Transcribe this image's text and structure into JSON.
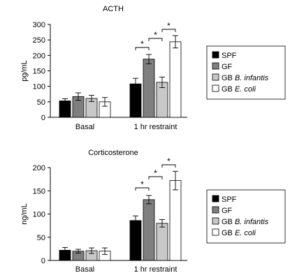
{
  "chart_data": [
    {
      "type": "bar",
      "title": "ACTH",
      "xlabel": "",
      "ylabel": "pg/mL",
      "ylim": [
        0,
        300
      ],
      "yticks": [
        "0",
        "50",
        "100",
        "150",
        "200",
        "250",
        "300"
      ],
      "categories": [
        "Basal",
        "1 hr restraint"
      ],
      "series": [
        {
          "name": "SPF",
          "legend_prefix": "SPF",
          "legend_italic": "",
          "color": "#000000",
          "values": [
            53,
            108
          ],
          "errors": [
            7,
            18
          ]
        },
        {
          "name": "GF",
          "legend_prefix": "GF",
          "legend_italic": "",
          "color": "#7f7f7f",
          "values": [
            67,
            188
          ],
          "errors": [
            12,
            15
          ]
        },
        {
          "name": "GB B. infantis",
          "legend_prefix": "GB ",
          "legend_italic": "B. infantis",
          "color": "#c8c8c8",
          "values": [
            61,
            113
          ],
          "errors": [
            10,
            17
          ]
        },
        {
          "name": "GB E. coli",
          "legend_prefix": "GB ",
          "legend_italic": "E. coli",
          "color": "#ffffff",
          "values": [
            50,
            244
          ],
          "errors": [
            14,
            20
          ]
        }
      ],
      "significance": [
        "*",
        "*",
        "*"
      ],
      "grid": false,
      "legend_position": "right"
    },
    {
      "type": "bar",
      "title": "Corticosterone",
      "xlabel": "",
      "ylabel": "ng/mL",
      "ylim": [
        0,
        200
      ],
      "yticks": [
        "0",
        "50",
        "100",
        "150",
        "200"
      ],
      "categories": [
        "Basal",
        "1 hr restraint"
      ],
      "series": [
        {
          "name": "SPF",
          "legend_prefix": "SPF",
          "legend_italic": "",
          "color": "#000000",
          "values": [
            22,
            86
          ],
          "errors": [
            6,
            10
          ]
        },
        {
          "name": "GF",
          "legend_prefix": "GF",
          "legend_italic": "",
          "color": "#7f7f7f",
          "values": [
            20,
            131
          ],
          "errors": [
            4,
            9
          ]
        },
        {
          "name": "GB B. infantis",
          "legend_prefix": "GB ",
          "legend_italic": "B. infantis",
          "color": "#c8c8c8",
          "values": [
            21,
            80
          ],
          "errors": [
            6,
            8
          ]
        },
        {
          "name": "GB E. coli",
          "legend_prefix": "GB ",
          "legend_italic": "E. coli",
          "color": "#ffffff",
          "values": [
            20,
            172
          ],
          "errors": [
            7,
            20
          ]
        }
      ],
      "significance": [
        "*",
        "*",
        "*"
      ],
      "grid": false,
      "legend_position": "right"
    }
  ]
}
